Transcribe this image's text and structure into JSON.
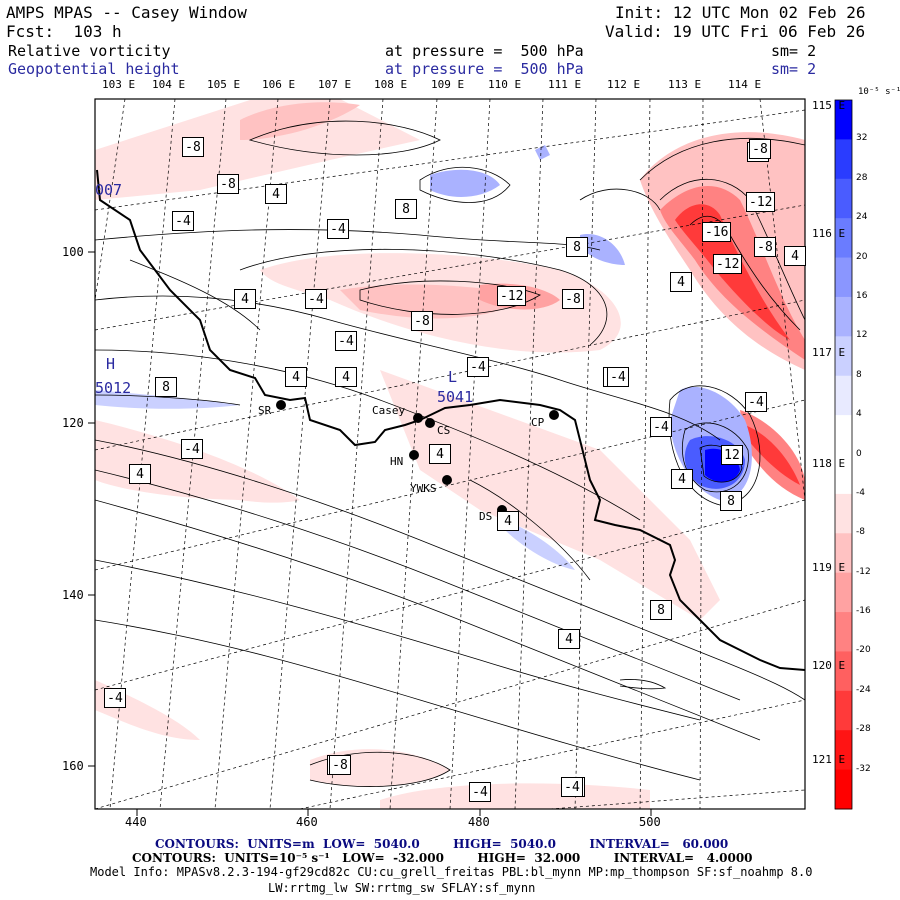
{
  "header": {
    "title": "AMPS MPAS -- Casey Window",
    "init": "Init: 12 UTC Mon 02 Feb 26",
    "fcst": "Fcst:  103 h",
    "valid": "Valid: 19 UTC Fri 06 Feb 26",
    "field1": {
      "name": "Relative vorticity",
      "level": "at pressure =  500 hPa",
      "smooth": "sm= 2"
    },
    "field2": {
      "name": "Geopotential height",
      "level": "at pressure =  500 hPa",
      "smooth": "sm= 2"
    }
  },
  "axes": {
    "top_lon_labels": [
      "103 E",
      "104 E",
      "105 E",
      "106 E",
      "107 E",
      "108 E",
      "109 E",
      "110 E",
      "111 E",
      "112 E",
      "113 E",
      "114 E"
    ],
    "right_lon_labels": [
      "115 E",
      "116 E",
      "117 E",
      "118 E",
      "119 E",
      "120 E",
      "121 E"
    ],
    "bottom_x_labels": [
      "440",
      "460",
      "480",
      "500"
    ],
    "left_y_labels": [
      "100",
      "120",
      "140",
      "160"
    ]
  },
  "contour_labels": [
    "-8",
    "-8",
    "4",
    "8",
    "-4",
    "-4",
    "8",
    "4",
    "4",
    "-4",
    "-12",
    "-8",
    "-8",
    "-4",
    "-4",
    "4",
    "4",
    "-4",
    "8",
    "-4",
    "4",
    "-4",
    "4",
    "4",
    "-8",
    "-16",
    "-12",
    "-8",
    "-12",
    "4",
    "-4",
    "12",
    "-4",
    "8",
    "4",
    "8",
    "4",
    "-4",
    "4",
    "-4",
    "-4",
    "-8",
    "-8",
    "-4"
  ],
  "highs_lows": {
    "low_label": "L",
    "low_value": "5041",
    "high_label": "H",
    "high_value": "5012",
    "edge_value": "007"
  },
  "stations": [
    {
      "name": "SR"
    },
    {
      "name": "Casey"
    },
    {
      "name": "CS"
    },
    {
      "name": "HN"
    },
    {
      "name": "YWKS"
    },
    {
      "name": "DS"
    },
    {
      "name": "CP"
    }
  ],
  "colorbar": {
    "units": "10⁻⁵ s⁻¹",
    "ticks": [
      "32",
      "28",
      "24",
      "20",
      "16",
      "12",
      "8",
      "4",
      "0",
      "-4",
      "-8",
      "-12",
      "-16",
      "-20",
      "-24",
      "-28",
      "-32"
    ],
    "colors": [
      "#0000ff",
      "#2a3cff",
      "#4a5cff",
      "#6a7cff",
      "#8a96ff",
      "#aab2ff",
      "#cad0ff",
      "#e8eaff",
      "#ffffff",
      "#ffffff",
      "#ffe2e2",
      "#ffc2c2",
      "#ffa2a2",
      "#ff8282",
      "#ff6060",
      "#ff3a3a",
      "#ff1414",
      "#ff0000"
    ]
  },
  "footer": {
    "contours1": "CONTOURS:  UNITS=m  LOW=  5040.0        HIGH=  5040.0        INTERVAL=   60.000",
    "contours2": "CONTOURS:  UNITS=10⁻⁵ s⁻¹   LOW=  -32.000        HIGH=  32.000        INTERVAL=   4.0000",
    "model_info": "Model Info: MPASv8.2.3-194-gf29cd82c CU:cu_grell_freitas PBL:bl_mynn MP:mp_thompson SF:sf_noahmp 8.0",
    "model_info2": "LW:rrtmg_lw SW:rrtmg_sw SFLAY:sf_mynn"
  }
}
